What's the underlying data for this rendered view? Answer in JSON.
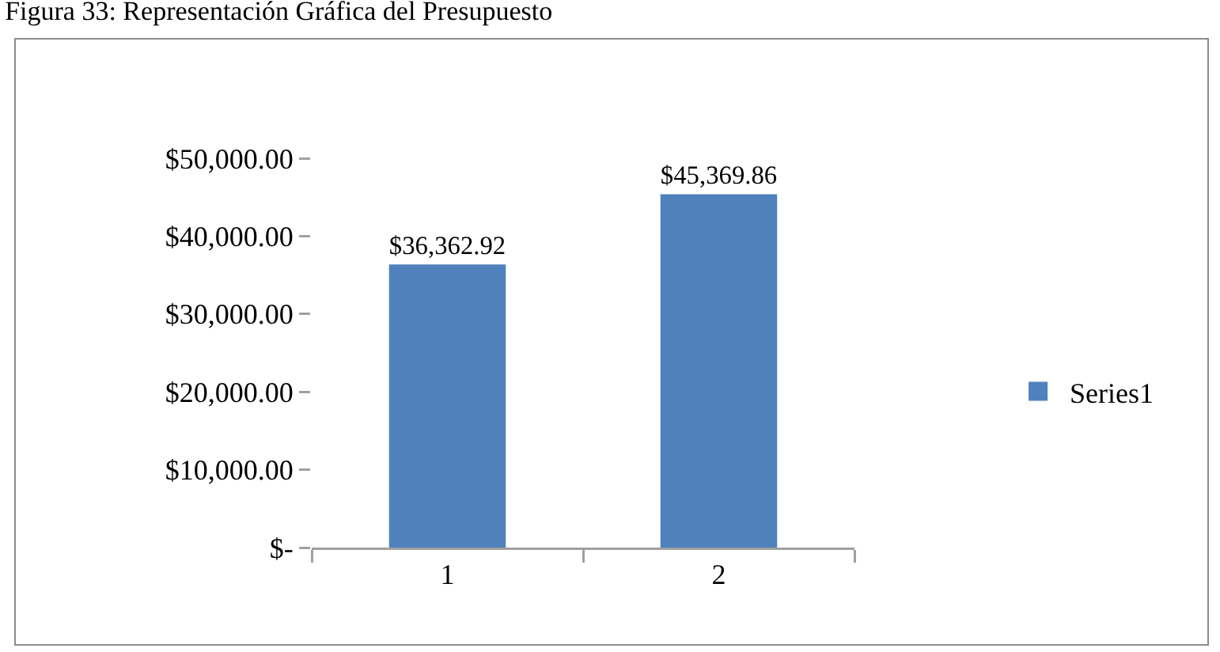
{
  "chart_data": {
    "type": "bar",
    "title": "Figura 33: Representación Gráfica del Presupuesto",
    "categories": [
      "1",
      "2"
    ],
    "series": [
      {
        "name": "Series1",
        "color": "#4f81bd",
        "values": [
          36362.92,
          45369.86
        ],
        "value_labels": [
          "$36,362.92",
          "$45,369.86"
        ]
      }
    ],
    "ylim": [
      0,
      50000
    ],
    "yticks": [
      {
        "value": 0,
        "label": "$-"
      },
      {
        "value": 10000,
        "label": "$10,000.00"
      },
      {
        "value": 20000,
        "label": "$20,000.00"
      },
      {
        "value": 30000,
        "label": "$30,000.00"
      },
      {
        "value": 40000,
        "label": "$40,000.00"
      },
      {
        "value": 50000,
        "label": "$50,000.00"
      }
    ],
    "grid": false,
    "legend": "right"
  }
}
